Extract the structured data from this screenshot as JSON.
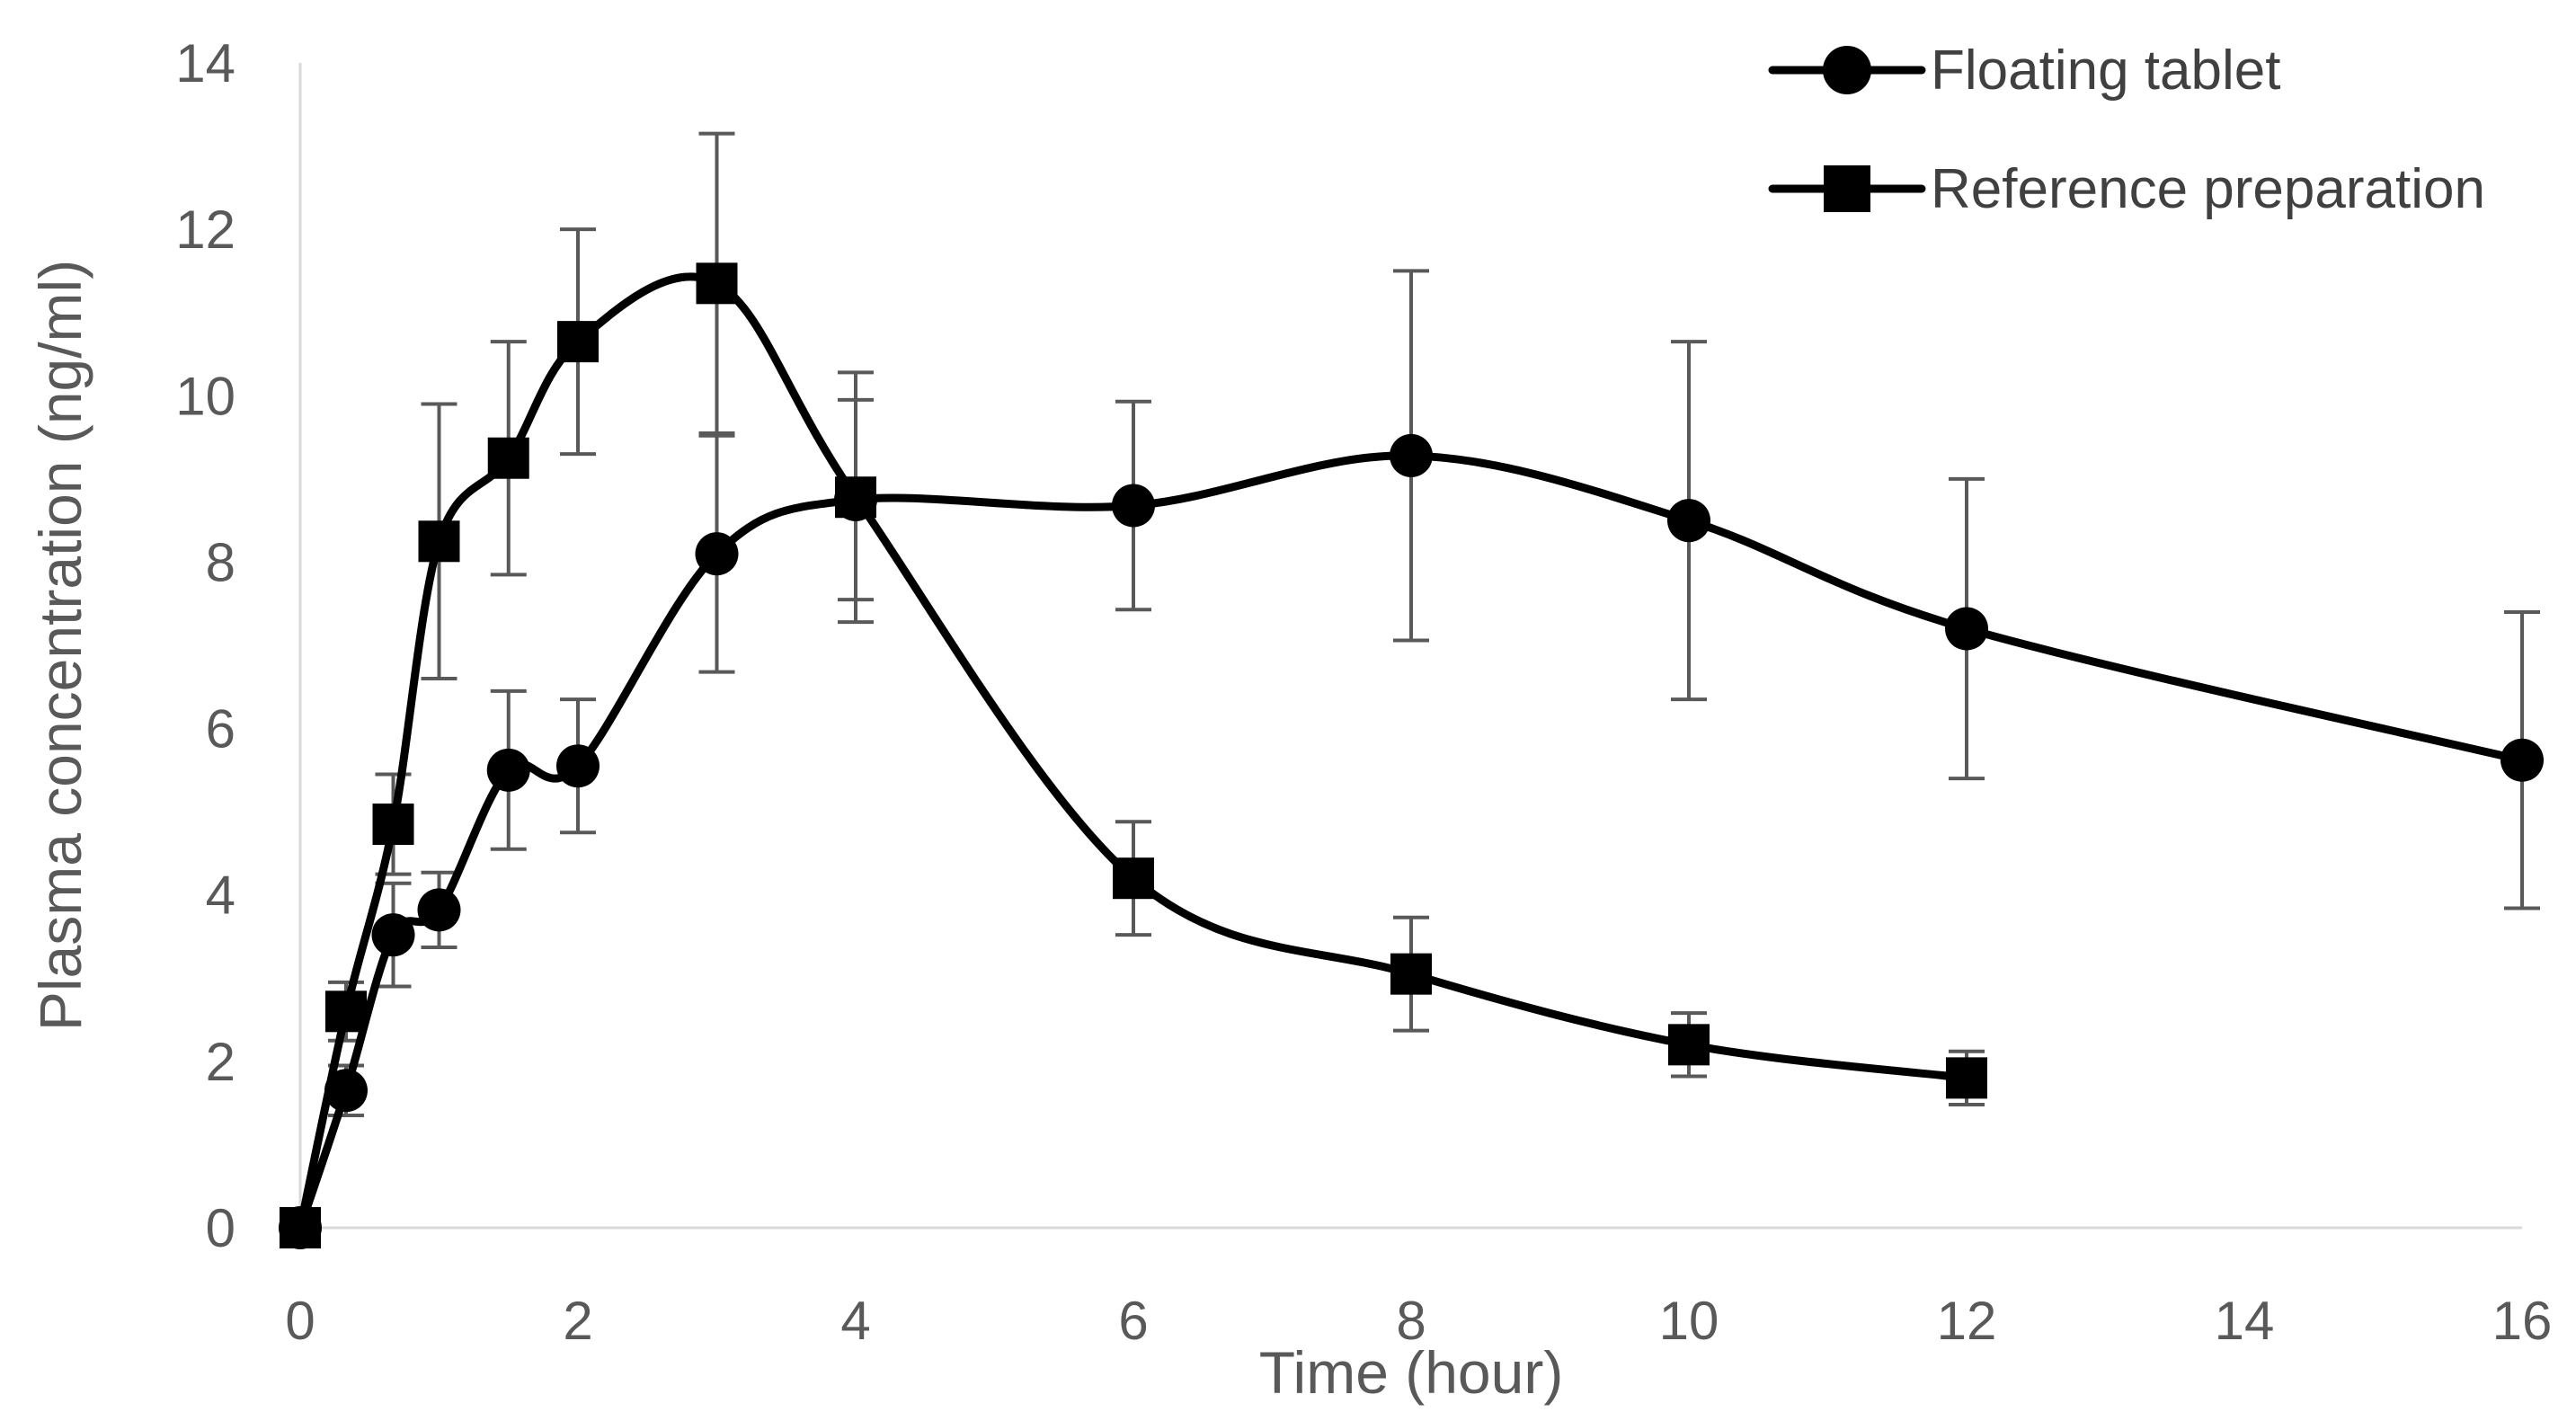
{
  "chart_data": {
    "type": "line",
    "title": "",
    "xlabel": "Time (hour)",
    "ylabel": "Plasma concentration (ng/ml)",
    "xlim": [
      0,
      16
    ],
    "ylim": [
      0,
      14
    ],
    "x_ticks": [
      "0",
      "2",
      "4",
      "6",
      "8",
      "10",
      "12",
      "14",
      "16"
    ],
    "y_ticks": [
      "0",
      "2",
      "4",
      "6",
      "8",
      "10",
      "12",
      "14"
    ],
    "grid": false,
    "legend_position": "top-right",
    "series": [
      {
        "name": "Floating tablet",
        "marker": "circle",
        "color": "#000000",
        "error_color": "#595959",
        "points": [
          {
            "x": 0,
            "y": 0,
            "err": 0
          },
          {
            "x": 0.33,
            "y": 1.65,
            "err": 0.3
          },
          {
            "x": 0.67,
            "y": 3.52,
            "err": 0.62
          },
          {
            "x": 1,
            "y": 3.82,
            "err": 0.45
          },
          {
            "x": 1.5,
            "y": 5.5,
            "err": 0.95
          },
          {
            "x": 2,
            "y": 5.55,
            "err": 0.8
          },
          {
            "x": 3,
            "y": 8.1,
            "err": 1.42
          },
          {
            "x": 4,
            "y": 8.75,
            "err": 1.2
          },
          {
            "x": 6,
            "y": 8.68,
            "err": 1.25
          },
          {
            "x": 8,
            "y": 9.28,
            "err": 2.22
          },
          {
            "x": 10,
            "y": 8.5,
            "err": 2.15
          },
          {
            "x": 12,
            "y": 7.2,
            "err": 1.8
          },
          {
            "x": 16,
            "y": 5.62,
            "err": 1.78
          }
        ]
      },
      {
        "name": "Reference preparation",
        "marker": "square",
        "color": "#000000",
        "error_color": "#595959",
        "points": [
          {
            "x": 0,
            "y": 0,
            "err": 0
          },
          {
            "x": 0.33,
            "y": 2.6,
            "err": 0.35
          },
          {
            "x": 0.67,
            "y": 4.85,
            "err": 0.6
          },
          {
            "x": 1,
            "y": 8.25,
            "err": 1.65
          },
          {
            "x": 1.5,
            "y": 9.25,
            "err": 1.4
          },
          {
            "x": 2,
            "y": 10.65,
            "err": 1.35
          },
          {
            "x": 3,
            "y": 11.35,
            "err": 1.8
          },
          {
            "x": 4,
            "y": 8.78,
            "err": 1.5
          },
          {
            "x": 6,
            "y": 4.2,
            "err": 0.68
          },
          {
            "x": 8,
            "y": 3.05,
            "err": 0.68
          },
          {
            "x": 10,
            "y": 2.2,
            "err": 0.38
          },
          {
            "x": 12,
            "y": 1.8,
            "err": 0.32
          }
        ]
      }
    ]
  }
}
